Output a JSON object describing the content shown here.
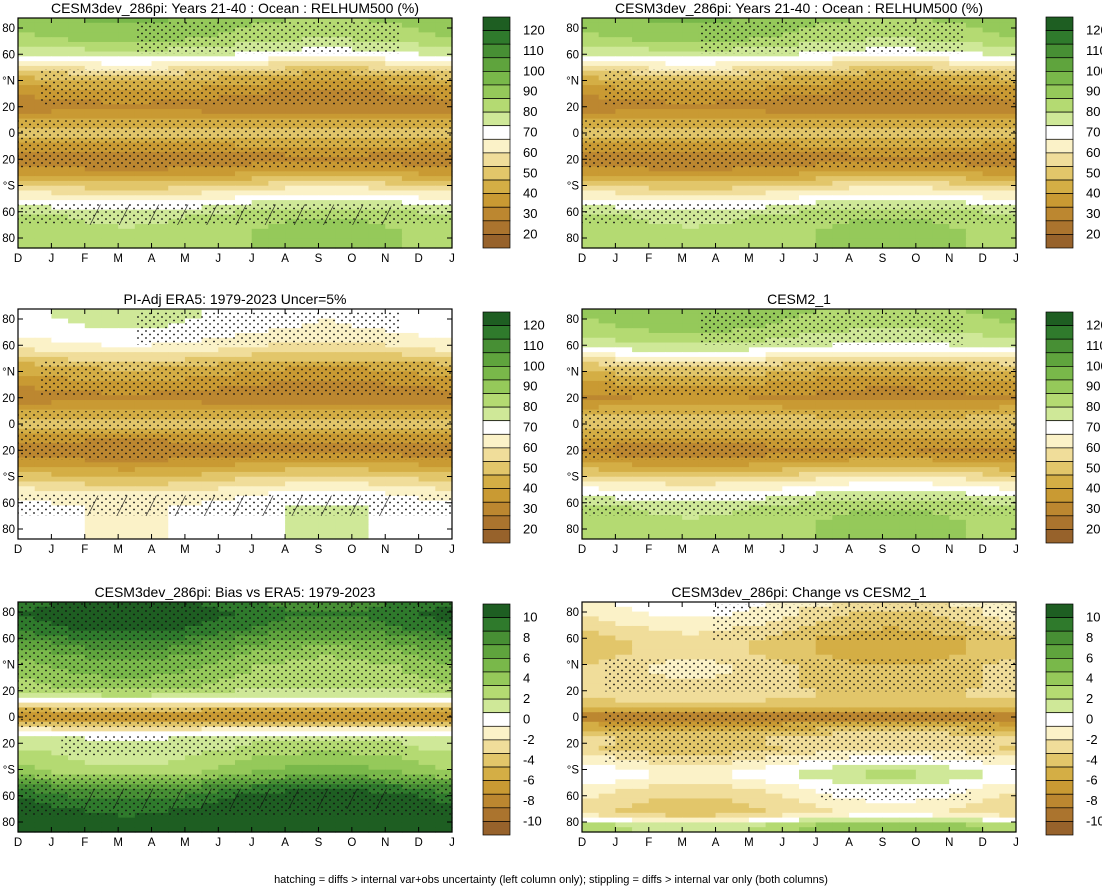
{
  "figure": {
    "caption": "hatching = diffs > internal var+obs uncertainty (left column only); stippling = diffs > internal var only (both columns)"
  },
  "axes": {
    "x_ticks": [
      "D",
      "J",
      "F",
      "M",
      "A",
      "M",
      "J",
      "J",
      "A",
      "S",
      "O",
      "N",
      "D",
      "J"
    ],
    "y_ticks": [
      "80",
      "60",
      "°N",
      "20",
      "0",
      "20",
      "°S",
      "60",
      "80"
    ]
  },
  "colorbars": {
    "absolute": {
      "labels": [
        "120",
        "110",
        "100",
        "90",
        "80",
        "70",
        "60",
        "50",
        "40",
        "30",
        "20"
      ],
      "colors": [
        "#1e5e22",
        "#2f7a2c",
        "#478f34",
        "#5fa43d",
        "#79b84a",
        "#95c95a",
        "#b4da72",
        "#cfe898",
        "#ffffff",
        "#fbf2c8",
        "#f0dd9a",
        "#e2c66a",
        "#d4ae45",
        "#c99a33",
        "#bc8730",
        "#ab742e",
        "#97622b"
      ]
    },
    "difference": {
      "labels": [
        "10",
        "8",
        "6",
        "4",
        "2",
        "0",
        "-2",
        "-4",
        "-6",
        "-8",
        "-10"
      ],
      "colors": [
        "#1e5e22",
        "#2f7a2c",
        "#478f34",
        "#5fa43d",
        "#79b84a",
        "#95c95a",
        "#b4da72",
        "#cfe898",
        "#ffffff",
        "#fbf2c8",
        "#f0dd9a",
        "#e2c66a",
        "#d4ae45",
        "#c99a33",
        "#bc8730",
        "#ab742e",
        "#97622b"
      ]
    }
  },
  "panels": [
    {
      "title": "CESM3dev_286pi: Years 21-40 : Ocean : RELHUM500 (%)",
      "scale": "absolute",
      "hatching": true,
      "stipple": "main"
    },
    {
      "title": "CESM3dev_286pi: Years 21-40 : Ocean : RELHUM500 (%)",
      "scale": "absolute",
      "hatching": false,
      "stipple": "main"
    },
    {
      "title": "PI-Adj ERA5: 1979-2023 Uncer=5%",
      "scale": "absolute",
      "hatching": true,
      "stipple": "main"
    },
    {
      "title": "CESM2_1",
      "scale": "absolute",
      "hatching": false,
      "stipple": "main"
    },
    {
      "title": "CESM3dev_286pi: Bias vs ERA5: 1979-2023",
      "scale": "difference",
      "hatching": true,
      "stipple": "bias"
    },
    {
      "title": "CESM3dev_286pi: Change vs CESM2_1",
      "scale": "difference",
      "hatching": false,
      "stipple": "change"
    }
  ],
  "chart_data": [
    {
      "type": "heatmap",
      "title": "CESM3dev_286pi: Years 21-40 : Ocean : RELHUM500 (%)",
      "x": "month (D to J)",
      "y": "latitude (-90 to 90)",
      "latitude": [
        90,
        75,
        60,
        45,
        30,
        20,
        10,
        0,
        -10,
        -20,
        -30,
        -45,
        -55,
        -65,
        -80,
        -90
      ],
      "relhum_zonal_mean": [
        90,
        85,
        72,
        48,
        35,
        30,
        42,
        52,
        40,
        30,
        38,
        60,
        72,
        82,
        85,
        85
      ],
      "zlim": [
        15,
        125
      ]
    },
    {
      "type": "heatmap",
      "title": "CESM3dev_286pi: Years 21-40 : Ocean : RELHUM500 (%)",
      "latitude": [
        90,
        75,
        60,
        45,
        30,
        20,
        10,
        0,
        -10,
        -20,
        -30,
        -45,
        -55,
        -65,
        -80,
        -90
      ],
      "relhum_zonal_mean": [
        90,
        85,
        72,
        48,
        35,
        30,
        42,
        52,
        40,
        30,
        38,
        60,
        72,
        82,
        85,
        85
      ],
      "zlim": [
        15,
        125
      ]
    },
    {
      "type": "heatmap",
      "title": "PI-Adj ERA5: 1979-2023 Uncer=5%",
      "latitude": [
        90,
        75,
        60,
        45,
        30,
        20,
        10,
        0,
        -10,
        -20,
        -30,
        -45,
        -55,
        -65,
        -80,
        -90
      ],
      "relhum_zonal_mean": [
        72,
        70,
        62,
        45,
        35,
        30,
        42,
        50,
        38,
        30,
        38,
        55,
        65,
        70,
        70,
        70
      ],
      "zlim": [
        15,
        125
      ]
    },
    {
      "type": "heatmap",
      "title": "CESM2_1",
      "latitude": [
        90,
        75,
        60,
        45,
        30,
        20,
        10,
        0,
        -10,
        -20,
        -30,
        -45,
        -55,
        -65,
        -80,
        -90
      ],
      "relhum_zonal_mean": [
        88,
        84,
        74,
        50,
        38,
        33,
        44,
        52,
        42,
        32,
        40,
        62,
        72,
        82,
        85,
        85
      ],
      "zlim": [
        15,
        125
      ]
    },
    {
      "type": "heatmap",
      "title": "CESM3dev_286pi: Bias vs ERA5: 1979-2023",
      "latitude": [
        90,
        80,
        70,
        60,
        50,
        40,
        25,
        15,
        5,
        0,
        -5,
        -15,
        -25,
        -35,
        -45,
        -55,
        -65,
        -75,
        -85,
        -90
      ],
      "bias": [
        9,
        10,
        9,
        7,
        5,
        4,
        3,
        1,
        -5,
        -8,
        -4,
        1,
        2,
        3,
        4,
        8,
        10,
        11,
        12,
        12
      ],
      "zlim": [
        -11,
        11
      ]
    },
    {
      "type": "heatmap",
      "title": "CESM3dev_286pi: Change vs CESM2_1",
      "latitude": [
        90,
        80,
        70,
        60,
        50,
        40,
        25,
        15,
        5,
        0,
        -5,
        -15,
        -25,
        -35,
        -45,
        -55,
        -65,
        -75,
        -85,
        -90
      ],
      "change": [
        -1,
        -2,
        -3,
        -4,
        -4,
        -3,
        -3,
        -3,
        -5,
        -9,
        -6,
        -3,
        -3,
        -1,
        1,
        -1,
        -2,
        -3,
        3,
        3
      ],
      "zlim": [
        -11,
        11
      ]
    }
  ]
}
